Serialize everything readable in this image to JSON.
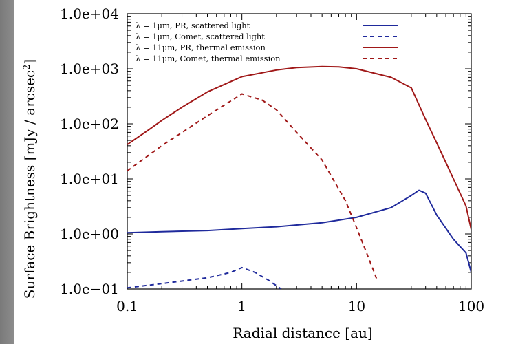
{
  "chart_data": {
    "type": "line",
    "title": "",
    "xlabel": "Radial distance [au]",
    "ylabel": "Surface Brightness [mJy / arcsec",
    "ylabel_superscript": "2",
    "ylabel_suffix": "]",
    "x_scale": "log",
    "y_scale": "log",
    "xlim": [
      0.1,
      100
    ],
    "ylim": [
      0.1,
      10000
    ],
    "x_ticks": [
      0.1,
      1,
      10,
      100
    ],
    "x_tick_labels": [
      "0.1",
      "1",
      "10",
      "100"
    ],
    "y_ticks": [
      0.1,
      1,
      10,
      100,
      1000,
      10000
    ],
    "y_tick_labels": [
      "1.0e−01",
      "1.0e+00",
      "1.0e+01",
      "1.0e+02",
      "1.0e+03",
      "1.0e+04"
    ],
    "grid": false,
    "legend_position": "top",
    "series": [
      {
        "name": "λ = 1μm, PR, scattered light",
        "color": "#1f2a9c",
        "dash": "solid",
        "x": [
          0.1,
          0.2,
          0.5,
          1,
          2,
          5,
          10,
          20,
          30,
          35,
          40,
          50,
          70,
          90,
          100
        ],
        "y": [
          1.05,
          1.1,
          1.15,
          1.25,
          1.35,
          1.6,
          2.0,
          3.0,
          5.0,
          6.2,
          5.5,
          2.2,
          0.8,
          0.45,
          0.2
        ]
      },
      {
        "name": "λ = 1μm, Comet, scattered light",
        "color": "#1f2a9c",
        "dash": "dashed",
        "x": [
          0.1,
          0.2,
          0.5,
          0.8,
          1.0,
          1.3,
          1.7,
          2.2
        ],
        "y": [
          0.105,
          0.125,
          0.16,
          0.2,
          0.245,
          0.2,
          0.145,
          0.1
        ]
      },
      {
        "name": "λ = 11μm, PR, thermal emission",
        "color": "#a01818",
        "dash": "solid",
        "x": [
          0.1,
          0.15,
          0.2,
          0.3,
          0.5,
          1,
          2,
          3,
          5,
          7,
          10,
          20,
          30,
          40,
          50,
          70,
          90,
          100
        ],
        "y": [
          42,
          75,
          115,
          200,
          380,
          720,
          950,
          1050,
          1100,
          1080,
          1000,
          700,
          450,
          120,
          45,
          10,
          3.2,
          1.2
        ]
      },
      {
        "name": "λ = 11μm, Comet, thermal emission",
        "color": "#a01818",
        "dash": "dashed",
        "x": [
          0.1,
          0.2,
          0.5,
          1.0,
          1.5,
          2,
          3,
          5,
          8,
          10,
          12,
          14,
          15
        ],
        "y": [
          14,
          40,
          140,
          350,
          270,
          180,
          70,
          22,
          4,
          1.3,
          0.5,
          0.22,
          0.15
        ]
      }
    ]
  }
}
